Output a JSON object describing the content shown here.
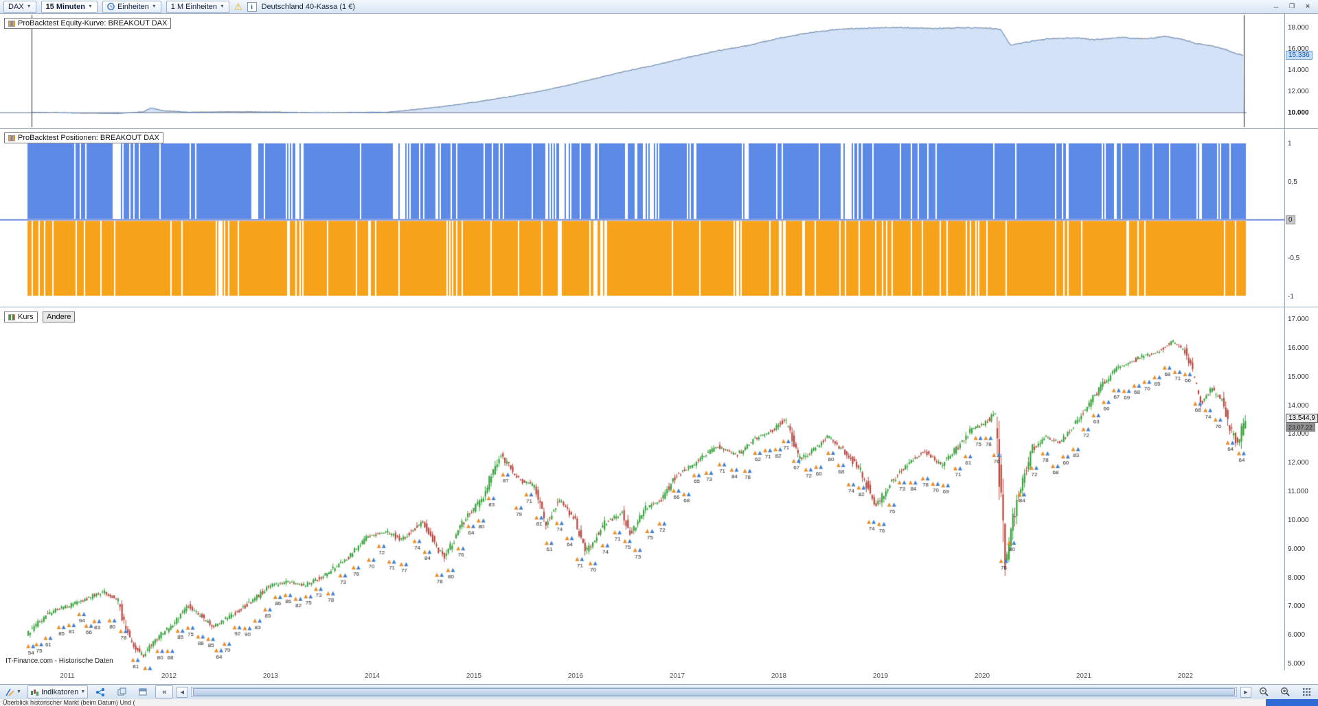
{
  "toolbar_top": {
    "symbol": "DAX",
    "timeframe": "15 Minuten",
    "units_label": "Einheiten",
    "units_value": "1 M Einheiten",
    "instrument": "Deutschland 40-Kassa (1 €)"
  },
  "window_controls": {
    "minimize": "─",
    "restore": "❐",
    "close": "✕"
  },
  "panels": {
    "equity": {
      "label": "ProBacktest Equity-Kurve: BREAKOUT DAX"
    },
    "positions": {
      "label": "ProBacktest Positionen: BREAKOUT DAX"
    },
    "price": {
      "tab_kurs": "Kurs",
      "tab_andere": "Andere",
      "watermark": "IT-Finance.com - Historische Daten"
    }
  },
  "xaxis_years": [
    "2011",
    "2012",
    "2013",
    "2014",
    "2015",
    "2016",
    "2017",
    "2018",
    "2019",
    "2020",
    "2021",
    "2022"
  ],
  "toolbar_bottom": {
    "indicators_label": "Indikatoren",
    "collapse_label": "«"
  },
  "statusbar": {
    "text": "Überblick historischer Markt (beim Datum) Und ("
  },
  "chart_data": [
    {
      "id": "equity",
      "type": "area",
      "title": "ProBacktest Equity-Kurve: BREAKOUT DAX",
      "ylim": [
        8500,
        19300
      ],
      "baseline": 10000,
      "last_value": 15336,
      "last_label": "15.336",
      "yticks": [
        {
          "v": 18000,
          "label": "18.000"
        },
        {
          "v": 16000,
          "label": "16.000"
        },
        {
          "v": 14000,
          "label": "14.000"
        },
        {
          "v": 12000,
          "label": "12.000"
        },
        {
          "v": 10000,
          "label": "10.000",
          "bold": true
        }
      ],
      "line_colors": {
        "blue": "#6f9bd8",
        "orange": "#f0a125"
      },
      "anchors_t_value": [
        [
          2010.6,
          10000
        ],
        [
          2011.2,
          9930
        ],
        [
          2011.5,
          9900
        ],
        [
          2011.75,
          10060
        ],
        [
          2011.82,
          10420
        ],
        [
          2011.95,
          10150
        ],
        [
          2012.2,
          10020
        ],
        [
          2012.6,
          10060
        ],
        [
          2013.0,
          10040
        ],
        [
          2013.5,
          9960
        ],
        [
          2013.9,
          10010
        ],
        [
          2014.15,
          10020
        ],
        [
          2014.45,
          10300
        ],
        [
          2014.7,
          10560
        ],
        [
          2015.0,
          10950
        ],
        [
          2015.3,
          11400
        ],
        [
          2015.6,
          11900
        ],
        [
          2015.9,
          12500
        ],
        [
          2016.2,
          13200
        ],
        [
          2016.5,
          13900
        ],
        [
          2016.8,
          14500
        ],
        [
          2017.1,
          15200
        ],
        [
          2017.4,
          15800
        ],
        [
          2017.7,
          16300
        ],
        [
          2018.0,
          17000
        ],
        [
          2018.3,
          17500
        ],
        [
          2018.6,
          17850
        ],
        [
          2018.9,
          17950
        ],
        [
          2019.2,
          18000
        ],
        [
          2019.5,
          17900
        ],
        [
          2019.8,
          17980
        ],
        [
          2020.05,
          17950
        ],
        [
          2020.18,
          17800
        ],
        [
          2020.28,
          16350
        ],
        [
          2020.45,
          16650
        ],
        [
          2020.65,
          16950
        ],
        [
          2020.9,
          17050
        ],
        [
          2021.1,
          16850
        ],
        [
          2021.35,
          17050
        ],
        [
          2021.6,
          16950
        ],
        [
          2021.8,
          17150
        ],
        [
          2021.95,
          16950
        ],
        [
          2022.1,
          16500
        ],
        [
          2022.25,
          16300
        ],
        [
          2022.4,
          15900
        ],
        [
          2022.5,
          15550
        ],
        [
          2022.6,
          15336
        ]
      ]
    },
    {
      "id": "positions",
      "type": "bar",
      "title": "ProBacktest Positionen: BREAKOUT DAX",
      "ylim": [
        -1.15,
        1.15
      ],
      "long_value": 1,
      "short_value": -1,
      "long_color": "#5c8ae6",
      "short_color": "#f7a21b",
      "zero_label": "0",
      "yticks": [
        {
          "v": 1,
          "label": "1"
        },
        {
          "v": 0.5,
          "label": "0,5"
        },
        {
          "v": -0.5,
          "label": "-0,5"
        },
        {
          "v": -1,
          "label": "-1"
        }
      ],
      "note": "Dichte Long(+1)- und Short(-1)-Balken ueber den gesamten Zeitraum mit vereinzelten Luecken"
    },
    {
      "id": "price",
      "type": "candlestick",
      "title": "Kurs",
      "ylim": [
        4600,
        17400
      ],
      "last_value": 13544.9,
      "last_label": "13.544,9",
      "last_date": "23.07.22",
      "up_color": "#35a33a",
      "down_color": "#b8453c",
      "yticks": [
        {
          "v": 17000,
          "label": "17.000"
        },
        {
          "v": 16000,
          "label": "16.000"
        },
        {
          "v": 15000,
          "label": "15.000"
        },
        {
          "v": 14000,
          "label": "14.000"
        },
        {
          "v": 13000,
          "label": "13.000"
        },
        {
          "v": 12000,
          "label": "12.000"
        },
        {
          "v": 11000,
          "label": "11.000"
        },
        {
          "v": 10000,
          "label": "10.000"
        },
        {
          "v": 9000,
          "label": "9.000"
        },
        {
          "v": 8000,
          "label": "8.000"
        },
        {
          "v": 7000,
          "label": "7.000"
        },
        {
          "v": 6000,
          "label": "6.000"
        },
        {
          "v": 5000,
          "label": "5.000"
        }
      ],
      "anchors_t_value": [
        [
          2010.6,
          6000
        ],
        [
          2010.85,
          6800
        ],
        [
          2011.05,
          7050
        ],
        [
          2011.2,
          7250
        ],
        [
          2011.35,
          7500
        ],
        [
          2011.5,
          7250
        ],
        [
          2011.62,
          5900
        ],
        [
          2011.75,
          5250
        ],
        [
          2011.9,
          5900
        ],
        [
          2012.05,
          6350
        ],
        [
          2012.2,
          7000
        ],
        [
          2012.45,
          6300
        ],
        [
          2012.6,
          6600
        ],
        [
          2012.8,
          7100
        ],
        [
          2013.0,
          7700
        ],
        [
          2013.2,
          7850
        ],
        [
          2013.35,
          7700
        ],
        [
          2013.55,
          8100
        ],
        [
          2013.75,
          8600
        ],
        [
          2013.95,
          9400
        ],
        [
          2014.15,
          9600
        ],
        [
          2014.3,
          9300
        ],
        [
          2014.5,
          9950
        ],
        [
          2014.72,
          8650
        ],
        [
          2014.9,
          9900
        ],
        [
          2015.1,
          10800
        ],
        [
          2015.27,
          12300
        ],
        [
          2015.45,
          11400
        ],
        [
          2015.6,
          11200
        ],
        [
          2015.72,
          9900
        ],
        [
          2015.85,
          10700
        ],
        [
          2016.0,
          10000
        ],
        [
          2016.12,
          8900
        ],
        [
          2016.3,
          9900
        ],
        [
          2016.47,
          10250
        ],
        [
          2016.55,
          9500
        ],
        [
          2016.7,
          10400
        ],
        [
          2016.85,
          10700
        ],
        [
          2017.0,
          11550
        ],
        [
          2017.2,
          12000
        ],
        [
          2017.4,
          12550
        ],
        [
          2017.6,
          12250
        ],
        [
          2017.8,
          12900
        ],
        [
          2017.95,
          13100
        ],
        [
          2018.07,
          13500
        ],
        [
          2018.22,
          12100
        ],
        [
          2018.35,
          12450
        ],
        [
          2018.5,
          12950
        ],
        [
          2018.65,
          12400
        ],
        [
          2018.8,
          11800
        ],
        [
          2018.97,
          10500
        ],
        [
          2019.1,
          11250
        ],
        [
          2019.3,
          12050
        ],
        [
          2019.45,
          12400
        ],
        [
          2019.6,
          11900
        ],
        [
          2019.75,
          12450
        ],
        [
          2019.9,
          13150
        ],
        [
          2020.05,
          13400
        ],
        [
          2020.14,
          13750
        ],
        [
          2020.24,
          8450
        ],
        [
          2020.35,
          10700
        ],
        [
          2020.5,
          12450
        ],
        [
          2020.63,
          12900
        ],
        [
          2020.78,
          12700
        ],
        [
          2020.92,
          13300
        ],
        [
          2021.05,
          13950
        ],
        [
          2021.2,
          14750
        ],
        [
          2021.35,
          15300
        ],
        [
          2021.5,
          15550
        ],
        [
          2021.62,
          15750
        ],
        [
          2021.75,
          15850
        ],
        [
          2021.88,
          16250
        ],
        [
          2022.0,
          15950
        ],
        [
          2022.07,
          15250
        ],
        [
          2022.17,
          14100
        ],
        [
          2022.27,
          14550
        ],
        [
          2022.37,
          14150
        ],
        [
          2022.47,
          13000
        ],
        [
          2022.53,
          12650
        ],
        [
          2022.58,
          13300
        ],
        [
          2022.6,
          13545
        ]
      ],
      "trade_markers_t_n": [
        [
          2010.65,
          54
        ],
        [
          2010.73,
          75
        ],
        [
          2010.82,
          61
        ],
        [
          2010.95,
          85
        ],
        [
          2011.05,
          81
        ],
        [
          2011.15,
          94
        ],
        [
          2011.22,
          66
        ],
        [
          2011.3,
          83
        ],
        [
          2011.45,
          80
        ],
        [
          2011.56,
          78
        ],
        [
          2011.68,
          81
        ],
        [
          2011.8,
          78
        ],
        [
          2011.92,
          80
        ],
        [
          2012.02,
          88
        ],
        [
          2012.12,
          85
        ],
        [
          2012.22,
          75
        ],
        [
          2012.32,
          88
        ],
        [
          2012.42,
          85
        ],
        [
          2012.5,
          64
        ],
        [
          2012.58,
          79
        ],
        [
          2012.68,
          92
        ],
        [
          2012.78,
          90
        ],
        [
          2012.88,
          83
        ],
        [
          2012.98,
          85
        ],
        [
          2013.08,
          86
        ],
        [
          2013.18,
          86
        ],
        [
          2013.28,
          82
        ],
        [
          2013.38,
          75
        ],
        [
          2013.48,
          73
        ],
        [
          2013.6,
          78
        ],
        [
          2013.72,
          73
        ],
        [
          2013.85,
          76
        ],
        [
          2014.0,
          70
        ],
        [
          2014.1,
          72
        ],
        [
          2014.2,
          71
        ],
        [
          2014.32,
          77
        ],
        [
          2014.45,
          74
        ],
        [
          2014.55,
          84
        ],
        [
          2014.67,
          78
        ],
        [
          2014.78,
          80
        ],
        [
          2014.88,
          76
        ],
        [
          2014.98,
          64
        ],
        [
          2015.08,
          80
        ],
        [
          2015.18,
          83
        ],
        [
          2015.32,
          87
        ],
        [
          2015.45,
          79
        ],
        [
          2015.55,
          71
        ],
        [
          2015.65,
          81
        ],
        [
          2015.75,
          61
        ],
        [
          2015.85,
          74
        ],
        [
          2015.95,
          64
        ],
        [
          2016.05,
          71
        ],
        [
          2016.18,
          70
        ],
        [
          2016.3,
          74
        ],
        [
          2016.42,
          71
        ],
        [
          2016.52,
          75
        ],
        [
          2016.62,
          73
        ],
        [
          2016.74,
          75
        ],
        [
          2016.86,
          72
        ],
        [
          2017.0,
          66
        ],
        [
          2017.1,
          68
        ],
        [
          2017.2,
          65
        ],
        [
          2017.32,
          73
        ],
        [
          2017.45,
          71
        ],
        [
          2017.57,
          84
        ],
        [
          2017.7,
          78
        ],
        [
          2017.8,
          62
        ],
        [
          2017.9,
          71
        ],
        [
          2018.0,
          82
        ],
        [
          2018.08,
          71
        ],
        [
          2018.18,
          67
        ],
        [
          2018.3,
          72
        ],
        [
          2018.4,
          60
        ],
        [
          2018.52,
          80
        ],
        [
          2018.62,
          68
        ],
        [
          2018.72,
          74
        ],
        [
          2018.82,
          82
        ],
        [
          2018.92,
          74
        ],
        [
          2019.02,
          76
        ],
        [
          2019.12,
          75
        ],
        [
          2019.22,
          73
        ],
        [
          2019.33,
          84
        ],
        [
          2019.45,
          78
        ],
        [
          2019.55,
          70
        ],
        [
          2019.65,
          69
        ],
        [
          2019.77,
          71
        ],
        [
          2019.87,
          61
        ],
        [
          2019.97,
          75
        ],
        [
          2020.07,
          78
        ],
        [
          2020.15,
          76
        ],
        [
          2020.22,
          76
        ],
        [
          2020.3,
          80
        ],
        [
          2020.4,
          84
        ],
        [
          2020.52,
          72
        ],
        [
          2020.63,
          78
        ],
        [
          2020.73,
          68
        ],
        [
          2020.83,
          60
        ],
        [
          2020.93,
          83
        ],
        [
          2021.03,
          72
        ],
        [
          2021.13,
          63
        ],
        [
          2021.23,
          66
        ],
        [
          2021.33,
          67
        ],
        [
          2021.43,
          69
        ],
        [
          2021.53,
          68
        ],
        [
          2021.63,
          70
        ],
        [
          2021.73,
          65
        ],
        [
          2021.83,
          68
        ],
        [
          2021.93,
          71
        ],
        [
          2022.03,
          66
        ],
        [
          2022.13,
          68
        ],
        [
          2022.23,
          74
        ],
        [
          2022.33,
          76
        ],
        [
          2022.45,
          64
        ],
        [
          2022.56,
          64
        ]
      ]
    }
  ]
}
